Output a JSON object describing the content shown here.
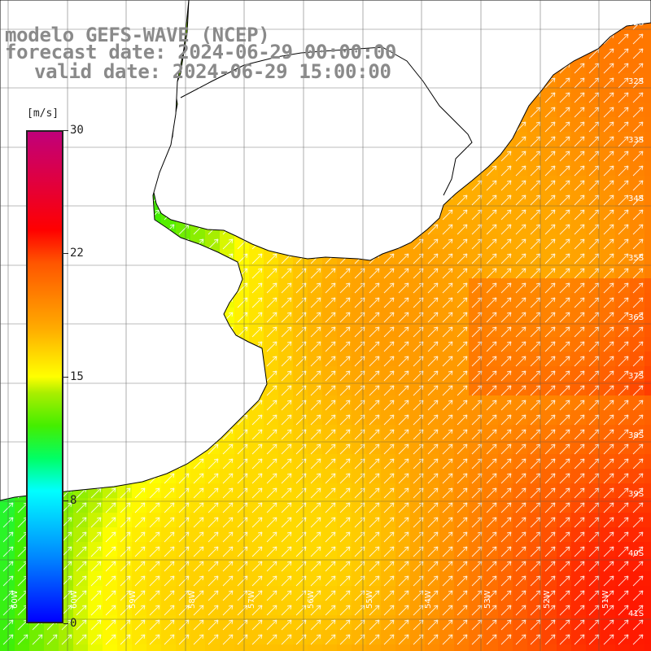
{
  "title": {
    "line1": "modelo GEFS-WAVE (NCEP)",
    "line2": "forecast date: 2024-06-29 00:00:00",
    "line3": "valid date: 2024-06-29 15:00:00"
  },
  "colorbar": {
    "unit": "[m/s]",
    "min": 0,
    "max": 30,
    "ticks": [
      "30",
      "22",
      "15",
      "8",
      "0"
    ],
    "colors": [
      "#0000ff",
      "#0088ff",
      "#00ffff",
      "#00ff66",
      "#44ee00",
      "#aaee00",
      "#ffff00",
      "#ffaa00",
      "#ff5500",
      "#ff0000",
      "#e00040",
      "#c0007a"
    ]
  },
  "map": {
    "land_color": "#ffffff",
    "coast_color": "#000000",
    "grid_color": "#555555",
    "lat_labels": [
      "32S",
      "33S",
      "34S",
      "35S",
      "36S",
      "37S",
      "38S",
      "39S",
      "40S",
      "41S"
    ],
    "lon_labels": [
      "60W",
      "59W",
      "58W",
      "57W",
      "56W",
      "55W",
      "54W",
      "53W",
      "52W",
      "51W"
    ],
    "arrow_direction": "toward northeast"
  }
}
